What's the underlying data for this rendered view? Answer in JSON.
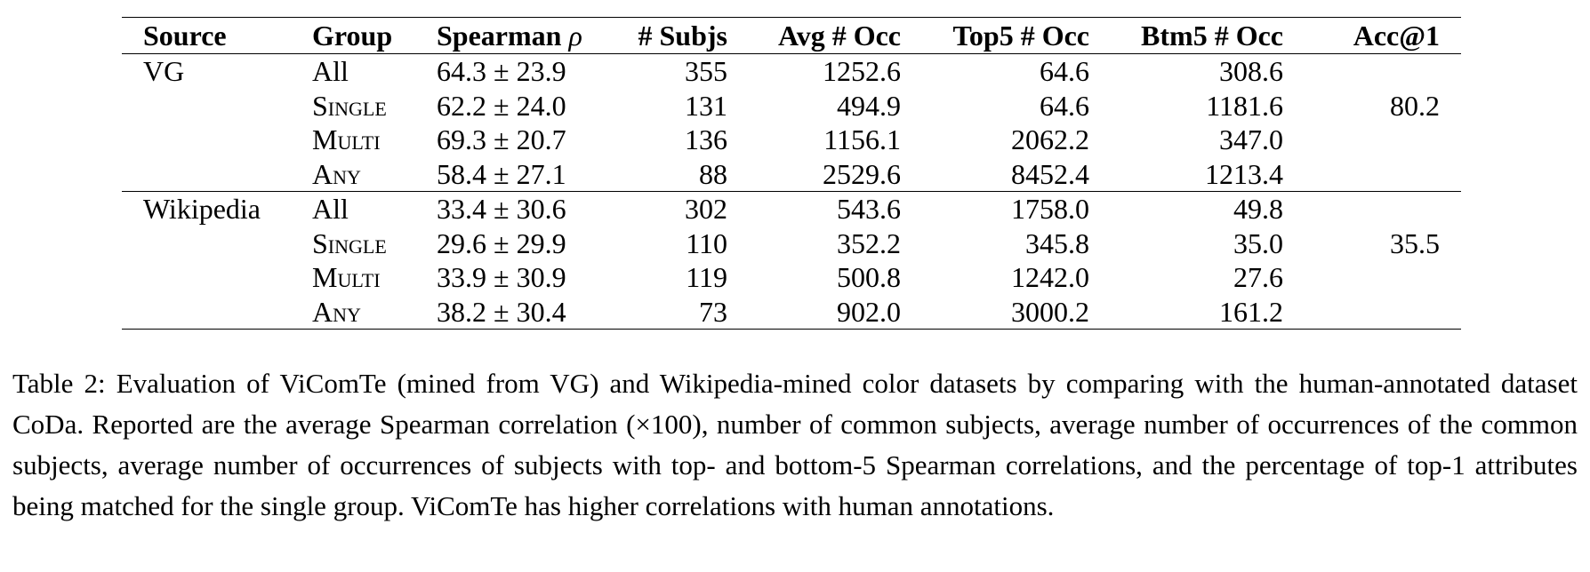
{
  "table": {
    "headers": [
      "Source",
      "Group",
      "Spearman ρ",
      "# Subjs",
      "Avg # Occ",
      "Top5 # Occ",
      "Btm5 # Occ",
      "Acc@1"
    ],
    "blocks": [
      {
        "source": "VG",
        "acc1": "80.2",
        "rows": [
          {
            "group": "All",
            "spearman": "64.3 ± 23.9",
            "subjs": "355",
            "avg_occ": "1252.6",
            "top5_occ": "64.6",
            "btm5_occ": "308.6"
          },
          {
            "group": "Single",
            "spearman": "62.2 ± 24.0",
            "subjs": "131",
            "avg_occ": "494.9",
            "top5_occ": "64.6",
            "btm5_occ": "1181.6"
          },
          {
            "group": "Multi",
            "spearman": "69.3 ± 20.7",
            "subjs": "136",
            "avg_occ": "1156.1",
            "top5_occ": "2062.2",
            "btm5_occ": "347.0"
          },
          {
            "group": "Any",
            "spearman": "58.4 ± 27.1",
            "subjs": "88",
            "avg_occ": "2529.6",
            "top5_occ": "8452.4",
            "btm5_occ": "1213.4"
          }
        ]
      },
      {
        "source": "Wikipedia",
        "acc1": "35.5",
        "rows": [
          {
            "group": "All",
            "spearman": "33.4 ± 30.6",
            "subjs": "302",
            "avg_occ": "543.6",
            "top5_occ": "1758.0",
            "btm5_occ": "49.8"
          },
          {
            "group": "Single",
            "spearman": "29.6 ± 29.9",
            "subjs": "110",
            "avg_occ": "352.2",
            "top5_occ": "345.8",
            "btm5_occ": "35.0"
          },
          {
            "group": "Multi",
            "spearman": "33.9 ± 30.9",
            "subjs": "119",
            "avg_occ": "500.8",
            "top5_occ": "1242.0",
            "btm5_occ": "27.6"
          },
          {
            "group": "Any",
            "spearman": "38.2 ± 30.4",
            "subjs": "73",
            "avg_occ": "902.0",
            "top5_occ": "3000.2",
            "btm5_occ": "161.2"
          }
        ]
      }
    ]
  },
  "caption": "Table 2:  Evaluation of ViComTe (mined from VG) and Wikipedia-mined color datasets by comparing with the human-annotated dataset CoDa.  Reported are the average Spearman correlation (×100), number of common subjects, average number of occurrences of the common subjects, average number of occurrences of subjects with top- and bottom-5 Spearman correlations, and the percentage of top-1 attributes being matched for the single group. ViComTe has higher correlations with human annotations."
}
